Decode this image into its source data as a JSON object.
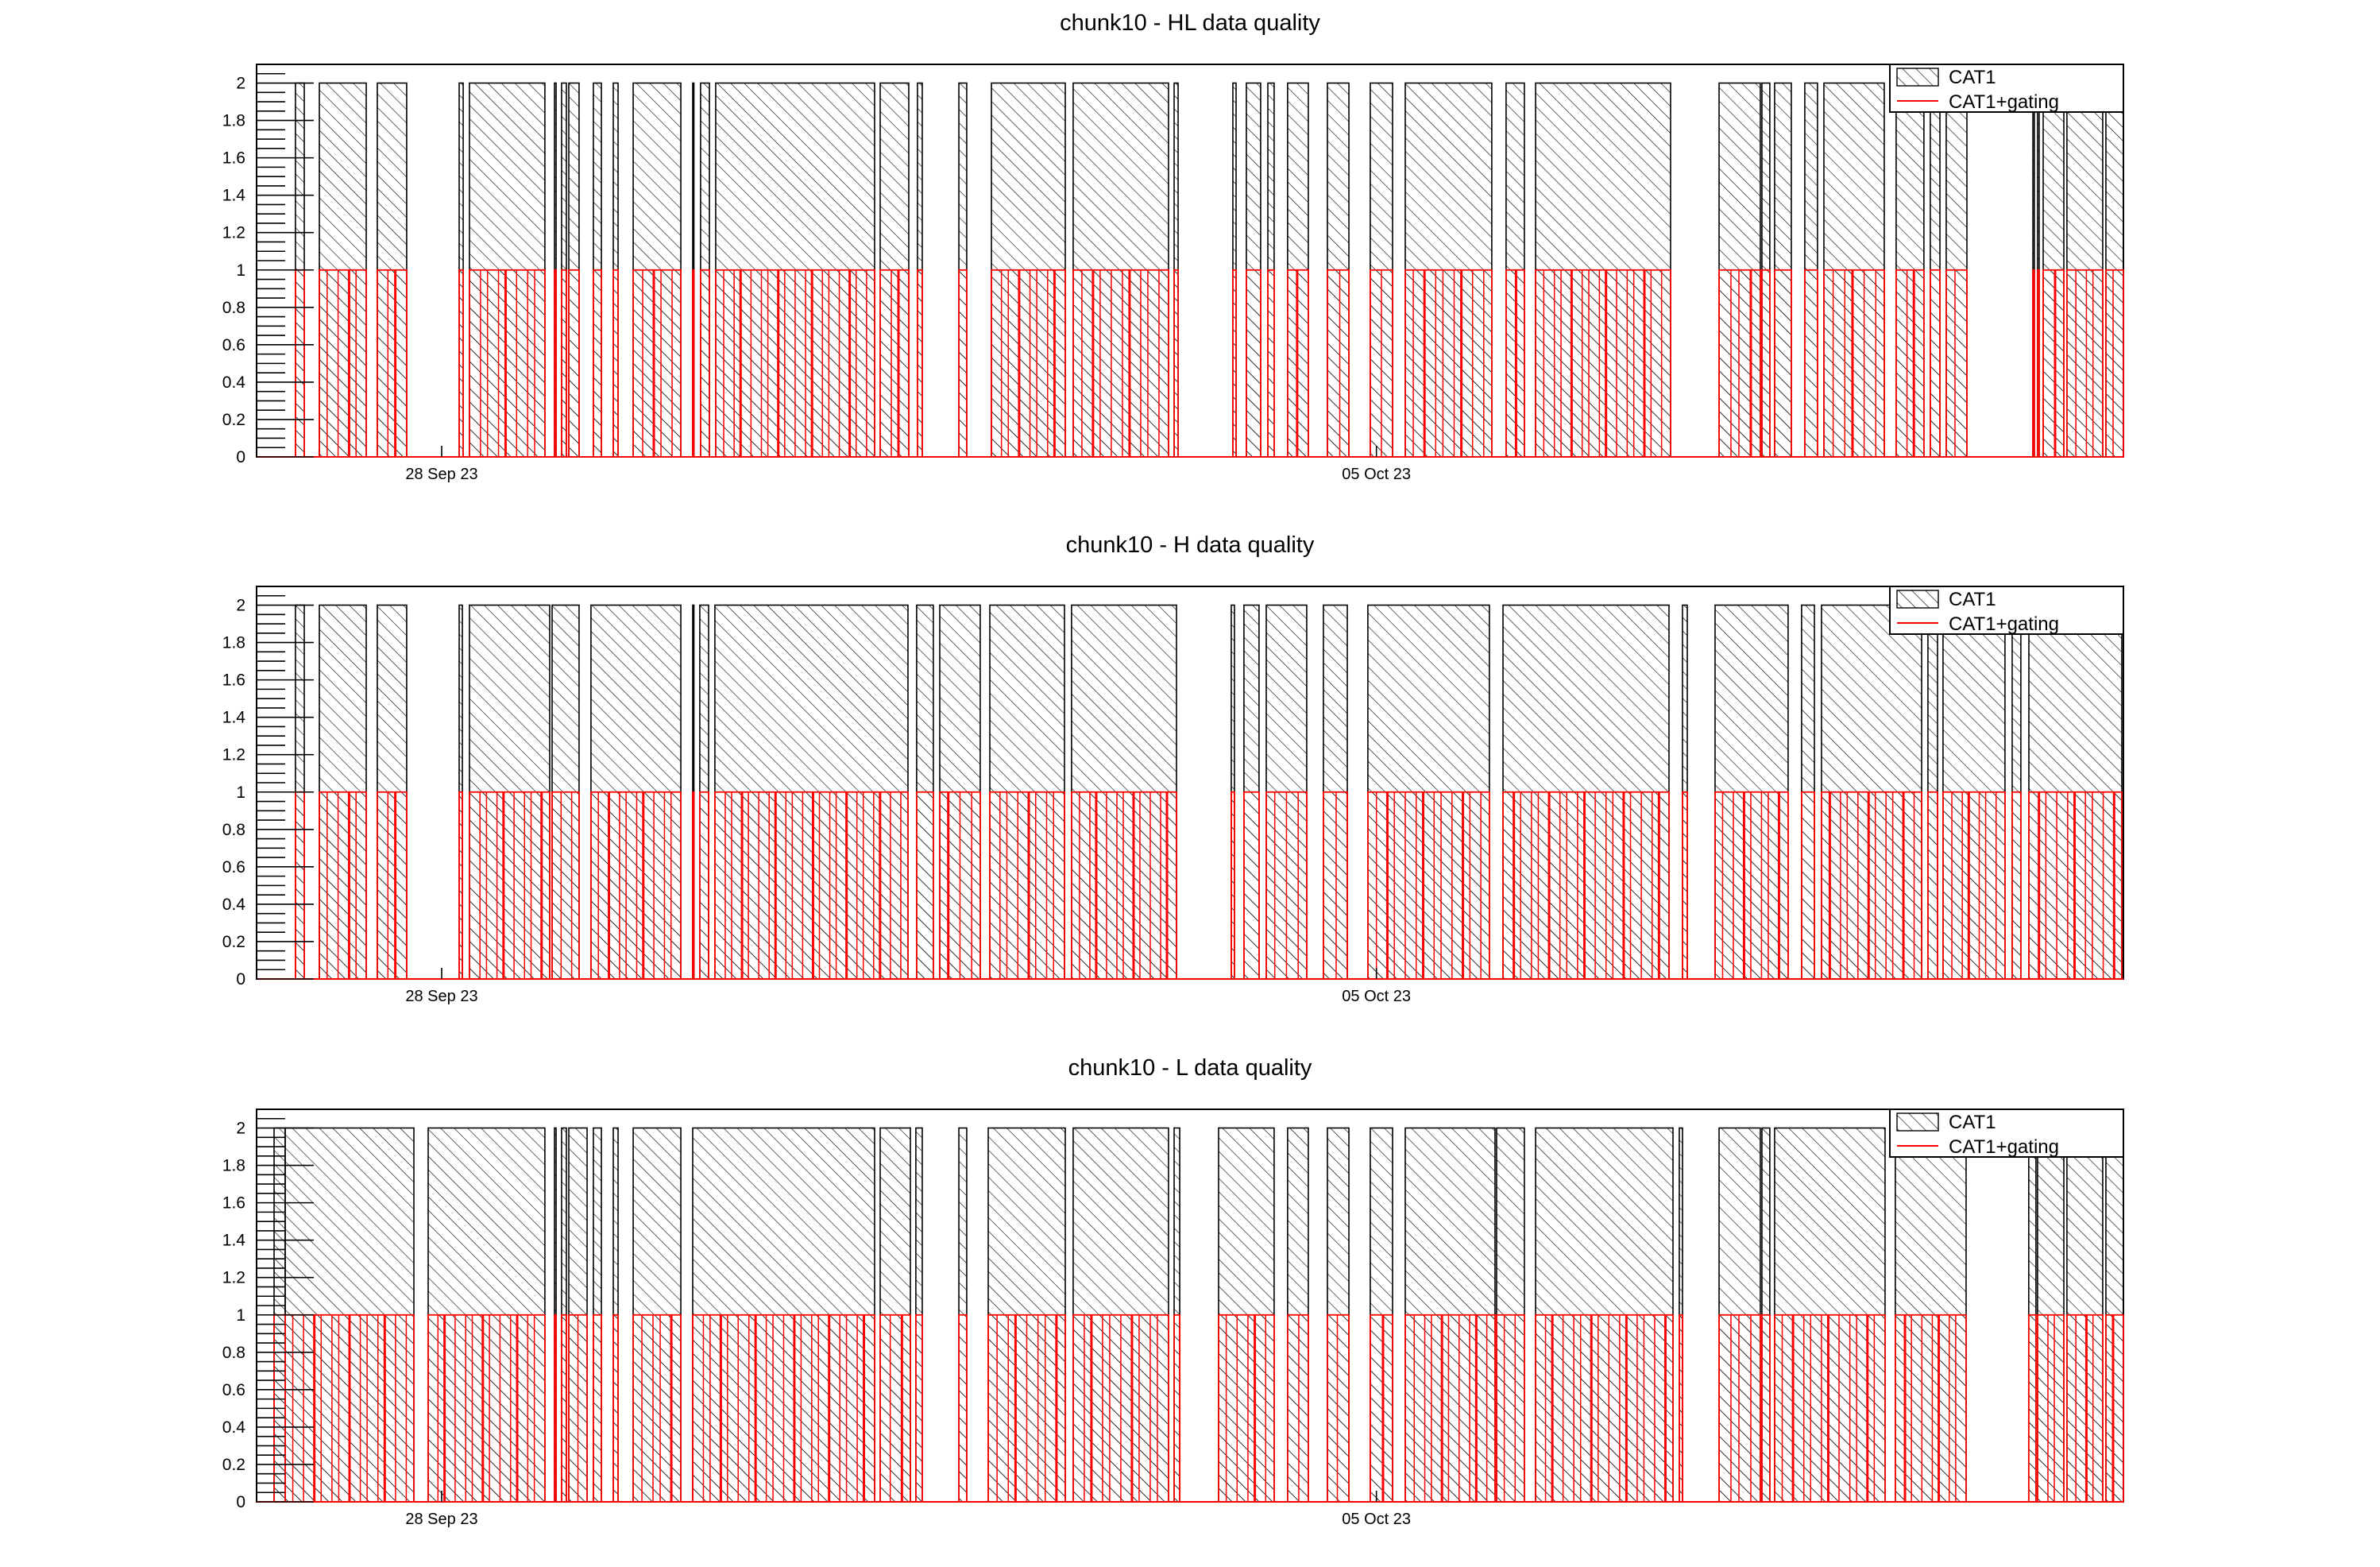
{
  "chart_data": [
    {
      "type": "bar",
      "title": "chunk10 - HL data quality",
      "xlabel": "",
      "ylabel": "",
      "x_unit": "days since 28 Sep 23 00:00",
      "xlim": [
        -1.386,
        12.594
      ],
      "ylim": [
        0,
        2.1
      ],
      "yticks": [
        "0",
        "0.2",
        "0.4",
        "0.6",
        "0.8",
        "1",
        "1.2",
        "1.4",
        "1.6",
        "1.8",
        "2"
      ],
      "xticks": [
        {
          "value": 0,
          "label": "28 Sep 23"
        },
        {
          "value": 7,
          "label": "05 Oct 23"
        }
      ],
      "legend": {
        "position": "top-right",
        "entries": [
          {
            "label": "CAT1",
            "style": "hatched-black"
          },
          {
            "label": "CAT1+gating",
            "style": "red-line"
          }
        ]
      },
      "series": [
        {
          "name": "CAT1",
          "value": 2,
          "color": "#000000",
          "segments": [
            [
              -1.095,
              -1.029
            ],
            [
              -0.916,
              -0.565
            ],
            [
              -0.482,
              -0.262
            ],
            [
              0.131,
              0.161
            ],
            [
              0.208,
              0.773
            ],
            [
              0.845,
              0.857
            ],
            [
              0.898,
              0.934
            ],
            [
              0.952,
              1.029
            ],
            [
              1.136,
              1.196
            ],
            [
              1.285,
              1.321
            ],
            [
              1.434,
              1.791
            ],
            [
              1.88,
              1.886
            ],
            [
              1.939,
              2.005
            ],
            [
              2.052,
              3.242
            ],
            [
              3.284,
              3.498
            ],
            [
              3.563,
              3.599
            ],
            [
              3.873,
              3.932
            ],
            [
              4.117,
              4.67
            ],
            [
              4.729,
              5.443
            ],
            [
              5.485,
              5.515
            ],
            [
              5.925,
              5.949
            ],
            [
              6.026,
              6.133
            ],
            [
              6.187,
              6.234
            ],
            [
              6.335,
              6.49
            ],
            [
              6.633,
              6.794
            ],
            [
              6.954,
              7.121
            ],
            [
              7.216,
              7.864
            ],
            [
              7.971,
              8.108
            ],
            [
              8.192,
              9.203
            ],
            [
              9.566,
              9.875
            ],
            [
              9.887,
              9.946
            ],
            [
              9.982,
              10.107
            ],
            [
              10.208,
              10.303
            ],
            [
              10.351,
              10.803
            ],
            [
              10.892,
              11.1
            ],
            [
              11.148,
              11.22
            ],
            [
              11.267,
              11.422
            ],
            [
              11.916,
              11.927
            ],
            [
              11.951,
              11.963
            ],
            [
              11.993,
              12.148
            ],
            [
              12.171,
              12.439
            ],
            [
              12.463,
              12.594
            ]
          ]
        },
        {
          "name": "CAT1+gating",
          "value": 1,
          "color": "#ff0000",
          "same_segments_as": "CAT1"
        }
      ]
    },
    {
      "type": "bar",
      "title": "chunk10 - H data quality",
      "xlabel": "",
      "ylabel": "",
      "x_unit": "days since 28 Sep 23 00:00",
      "xlim": [
        -1.386,
        12.594
      ],
      "ylim": [
        0,
        2.1
      ],
      "yticks": [
        "0",
        "0.2",
        "0.4",
        "0.6",
        "0.8",
        "1",
        "1.2",
        "1.4",
        "1.6",
        "1.8",
        "2"
      ],
      "xticks": [
        {
          "value": 0,
          "label": "28 Sep 23"
        },
        {
          "value": 7,
          "label": "05 Oct 23"
        }
      ],
      "legend": {
        "position": "top-right",
        "entries": [
          {
            "label": "CAT1",
            "style": "hatched-black"
          },
          {
            "label": "CAT1+gating",
            "style": "red-line"
          }
        ]
      },
      "series": [
        {
          "name": "CAT1",
          "value": 2,
          "color": "#000000",
          "segments": [
            [
              -1.095,
              -1.029
            ],
            [
              -0.916,
              -0.565
            ],
            [
              -0.482,
              -0.262
            ],
            [
              0.131,
              0.155
            ],
            [
              0.208,
              0.809
            ],
            [
              0.827,
              1.029
            ],
            [
              1.118,
              1.791
            ],
            [
              1.88,
              1.886
            ],
            [
              1.933,
              1.999
            ],
            [
              2.046,
              3.492
            ],
            [
              3.557,
              3.682
            ],
            [
              3.73,
              4.033
            ],
            [
              4.105,
              4.664
            ],
            [
              4.717,
              5.503
            ],
            [
              5.913,
              5.937
            ],
            [
              6.008,
              6.121
            ],
            [
              6.175,
              6.478
            ],
            [
              6.603,
              6.782
            ],
            [
              6.936,
              7.846
            ],
            [
              7.948,
              9.191
            ],
            [
              9.292,
              9.328
            ],
            [
              9.536,
              10.083
            ],
            [
              10.184,
              10.28
            ],
            [
              10.333,
              11.083
            ],
            [
              11.13,
              11.202
            ],
            [
              11.243,
              11.707
            ],
            [
              11.761,
              11.826
            ],
            [
              11.886,
              12.582
            ]
          ]
        },
        {
          "name": "CAT1+gating",
          "value": 1,
          "color": "#ff0000",
          "same_segments_as": "CAT1"
        }
      ]
    },
    {
      "type": "bar",
      "title": "chunk10 - L data quality",
      "xlabel": "",
      "ylabel": "",
      "x_unit": "days since 28 Sep 23 00:00",
      "xlim": [
        -1.386,
        12.594
      ],
      "ylim": [
        0,
        2.1
      ],
      "yticks": [
        "0",
        "0.2",
        "0.4",
        "0.6",
        "0.8",
        "1",
        "1.2",
        "1.4",
        "1.6",
        "1.8",
        "2"
      ],
      "xticks": [
        {
          "value": 0,
          "label": "28 Sep 23"
        },
        {
          "value": 7,
          "label": "05 Oct 23"
        }
      ],
      "legend": {
        "position": "top-right",
        "entries": [
          {
            "label": "CAT1",
            "style": "hatched-black"
          },
          {
            "label": "CAT1+gating",
            "style": "red-line"
          }
        ]
      },
      "series": [
        {
          "name": "CAT1",
          "value": 2,
          "color": "#000000",
          "segments": [
            [
              -1.255,
              -1.172
            ],
            [
              -1.172,
              -0.208
            ],
            [
              -0.101,
              0.773
            ],
            [
              0.845,
              0.857
            ],
            [
              0.898,
              0.934
            ],
            [
              0.952,
              1.089
            ],
            [
              1.136,
              1.196
            ],
            [
              1.285,
              1.321
            ],
            [
              1.434,
              1.791
            ],
            [
              1.88,
              3.242
            ],
            [
              3.284,
              3.51
            ],
            [
              3.551,
              3.599
            ],
            [
              3.873,
              3.932
            ],
            [
              4.093,
              4.67
            ],
            [
              4.729,
              5.443
            ],
            [
              5.485,
              5.527
            ],
            [
              5.818,
              6.234
            ],
            [
              6.335,
              6.49
            ],
            [
              6.633,
              6.794
            ],
            [
              6.954,
              7.121
            ],
            [
              7.216,
              7.888
            ],
            [
              7.9,
              8.108
            ],
            [
              8.192,
              9.221
            ],
            [
              9.268,
              9.292
            ],
            [
              9.566,
              9.875
            ],
            [
              9.887,
              9.946
            ],
            [
              9.982,
              10.809
            ],
            [
              10.886,
              11.416
            ],
            [
              11.885,
              11.939
            ],
            [
              11.951,
              12.148
            ],
            [
              12.171,
              12.439
            ],
            [
              12.463,
              12.594
            ]
          ]
        },
        {
          "name": "CAT1+gating",
          "value": 1,
          "color": "#ff0000",
          "same_segments_as": "CAT1"
        }
      ]
    }
  ]
}
